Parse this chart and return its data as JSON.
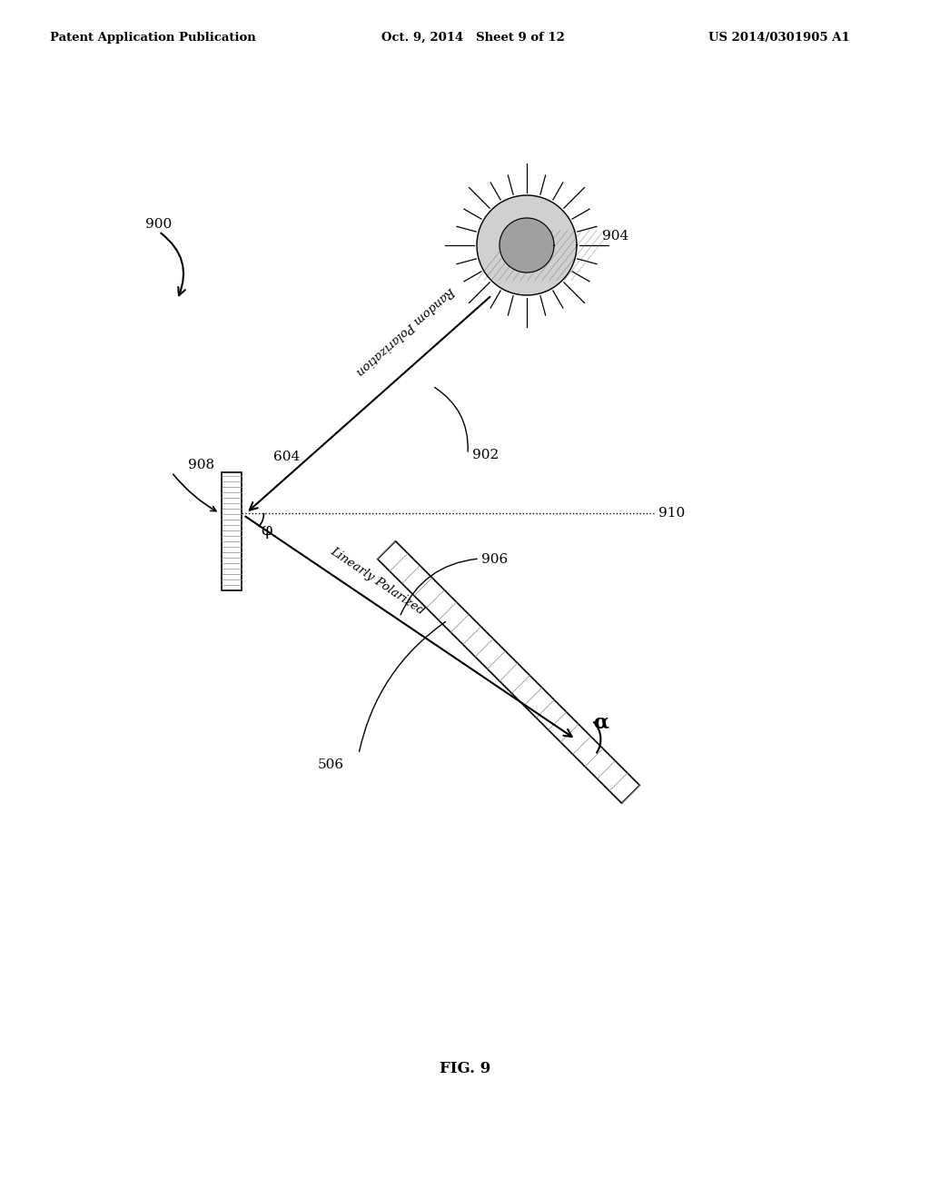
{
  "header_left": "Patent Application Publication",
  "header_mid": "Oct. 9, 2014   Sheet 9 of 12",
  "header_right": "US 2014/0301905 A1",
  "fig_label": "FIG. 9",
  "label_900": "900",
  "label_902": "902",
  "label_904": "904",
  "label_506": "506",
  "label_604": "604",
  "label_906": "906",
  "label_908": "908",
  "label_910": "910",
  "text_random_pol": "Random Polarization",
  "text_linear_pol": "Linearly Polarized",
  "text_phi": "φ",
  "text_alpha": "α",
  "bg_color": "#ffffff",
  "line_color": "#000000",
  "hatch_color": "#555555"
}
